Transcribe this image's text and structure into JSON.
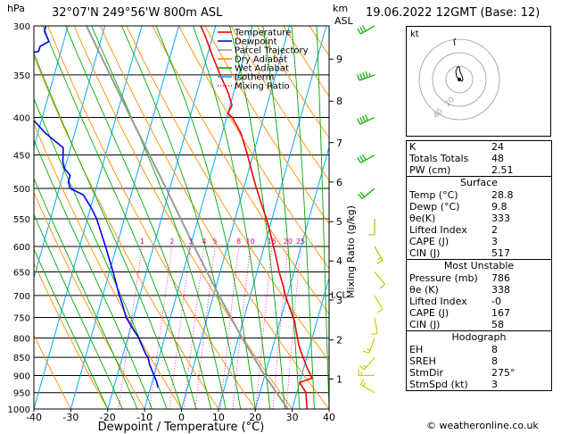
{
  "header": {
    "hpa_unit": "hPa",
    "location": "32°07'N 249°56'W 800m ASL",
    "km_unit": "km",
    "asl_unit": "ASL",
    "date": "19.06.2022 12GMT (Base: 12)"
  },
  "credit": "© weatheronline.co.uk",
  "hodograph": {
    "label": "kt",
    "ring_labels": [
      "20",
      "40"
    ]
  },
  "indices": {
    "rows": [
      {
        "label": "K",
        "value": "24"
      },
      {
        "label": "Totals Totals",
        "value": "48"
      },
      {
        "label": "PW (cm)",
        "value": "2.51"
      }
    ]
  },
  "surface": {
    "title": "Surface",
    "rows": [
      {
        "label": "Temp (°C)",
        "value": "28.8"
      },
      {
        "label": "Dewp (°C)",
        "value": "9.8"
      },
      {
        "label": "θe(K)",
        "value": "333"
      },
      {
        "label": "Lifted Index",
        "value": "2"
      },
      {
        "label": "CAPE (J)",
        "value": "3"
      },
      {
        "label": "CIN (J)",
        "value": "517"
      }
    ]
  },
  "most_unstable": {
    "title": "Most Unstable",
    "rows": [
      {
        "label": "Pressure (mb)",
        "value": "786"
      },
      {
        "label": "θe (K)",
        "value": "338"
      },
      {
        "label": "Lifted Index",
        "value": "-0"
      },
      {
        "label": "CAPE (J)",
        "value": "167"
      },
      {
        "label": "CIN (J)",
        "value": "58"
      }
    ]
  },
  "hodograph_table": {
    "title": "Hodograph",
    "rows": [
      {
        "label": "EH",
        "value": "8"
      },
      {
        "label": "SREH",
        "value": "8"
      },
      {
        "label": "StmDir",
        "value": "275°"
      },
      {
        "label": "StmSpd (kt)",
        "value": "3"
      }
    ]
  },
  "chart_data": {
    "type": "line",
    "xlabel": "Dewpoint / Temperature (°C)",
    "ylabel": "Mixing Ratio (g/kg)",
    "xlim": [
      -40,
      40
    ],
    "ylim": [
      1000,
      300
    ],
    "x_ticks": [
      "-40",
      "-30",
      "-20",
      "-10",
      "0",
      "10",
      "20",
      "30",
      "40"
    ],
    "pressure_levels": [
      300,
      350,
      400,
      450,
      500,
      550,
      600,
      650,
      700,
      750,
      800,
      850,
      900,
      950,
      1000
    ],
    "km_ticks": [
      {
        "label": "1",
        "p": 910
      },
      {
        "label": "2",
        "p": 805
      },
      {
        "label": "3",
        "p": 710
      },
      {
        "label": "4",
        "p": 628
      },
      {
        "label": "5",
        "p": 555
      },
      {
        "label": "6",
        "p": 490
      },
      {
        "label": "7",
        "p": 433
      },
      {
        "label": "8",
        "p": 380
      },
      {
        "label": "9",
        "p": 333
      }
    ],
    "lcl_label": "LCL",
    "lcl_p": 697,
    "mixing_ratio_labels": [
      "1",
      "2",
      "3",
      "4",
      "5",
      "8",
      "10",
      "15",
      "20",
      "25"
    ],
    "legend": {
      "position": "top-left",
      "entries": [
        {
          "name": "Temperature",
          "color": "#ff0000"
        },
        {
          "name": "Dewpoint",
          "color": "#0000ff"
        },
        {
          "name": "Parcel Trajectory",
          "color": "#999999"
        },
        {
          "name": "Dry Adiabat",
          "color": "#ff8c00"
        },
        {
          "name": "Wet Adiabat",
          "color": "#00aa00"
        },
        {
          "name": "Isotherm",
          "color": "#00aaff"
        },
        {
          "name": "Mixing Ratio",
          "color": "#ff00aa"
        }
      ]
    },
    "series": [
      {
        "name": "Temperature",
        "color": "#ff0000",
        "points": [
          [
            1000,
            34
          ],
          [
            950,
            32.5
          ],
          [
            920,
            30
          ],
          [
            908,
            33
          ],
          [
            900,
            32.5
          ],
          [
            880,
            31
          ],
          [
            850,
            29
          ],
          [
            820,
            27
          ],
          [
            800,
            26
          ],
          [
            780,
            25
          ],
          [
            760,
            24
          ],
          [
            740,
            22.5
          ],
          [
            720,
            21
          ],
          [
            700,
            19.5
          ],
          [
            680,
            18.2
          ],
          [
            650,
            16
          ],
          [
            620,
            14
          ],
          [
            600,
            12.5
          ],
          [
            580,
            11
          ],
          [
            550,
            8.5
          ],
          [
            520,
            5.5
          ],
          [
            500,
            3.5
          ],
          [
            480,
            1.5
          ],
          [
            450,
            -1.5
          ],
          [
            420,
            -5
          ],
          [
            400,
            -8.5
          ],
          [
            395,
            -10
          ],
          [
            385,
            -9.5
          ],
          [
            370,
            -11.5
          ],
          [
            350,
            -15
          ],
          [
            330,
            -18.5
          ],
          [
            310,
            -22
          ],
          [
            300,
            -24
          ]
        ]
      },
      {
        "name": "Dewpoint",
        "color": "#0000ff",
        "points": [
          [
            935,
            -8
          ],
          [
            925,
            -8.5
          ],
          [
            915,
            -9
          ],
          [
            900,
            -10
          ],
          [
            885,
            -11
          ],
          [
            870,
            -12
          ],
          [
            850,
            -13
          ],
          [
            840,
            -14
          ],
          [
            820,
            -15.5
          ],
          [
            800,
            -17
          ],
          [
            790,
            -18
          ],
          [
            770,
            -20
          ],
          [
            760,
            -21
          ],
          [
            750,
            -22
          ],
          [
            720,
            -24
          ],
          [
            700,
            -25.5
          ],
          [
            650,
            -29
          ],
          [
            600,
            -33
          ],
          [
            550,
            -37.5
          ],
          [
            530,
            -40
          ],
          [
            510,
            -43
          ],
          [
            500,
            -47
          ],
          [
            490,
            -48
          ],
          [
            480,
            -48
          ],
          [
            470,
            -50
          ],
          [
            460,
            -51
          ],
          [
            450,
            -51.5
          ],
          [
            440,
            -52
          ],
          [
            420,
            -58
          ],
          [
            400,
            -63
          ],
          [
            380,
            -64
          ],
          [
            370,
            -68
          ],
          [
            360,
            -71
          ],
          [
            340,
            -73
          ],
          [
            330,
            -72
          ],
          [
            325,
            -66
          ],
          [
            320,
            -66
          ],
          [
            315,
            -64
          ],
          [
            305,
            -66
          ],
          [
            300,
            -66
          ]
        ]
      },
      {
        "name": "Parcel Trajectory",
        "color": "#999999",
        "points": [
          [
            1000,
            28.8
          ],
          [
            900,
            20
          ],
          [
            800,
            11
          ],
          [
            700,
            1.5
          ],
          [
            600,
            -9
          ],
          [
            500,
            -21
          ],
          [
            400,
            -36
          ],
          [
            300,
            -55
          ]
        ]
      }
    ],
    "wind_barbs": [
      {
        "p": 300,
        "dir": 240,
        "speed_kt": 30
      },
      {
        "p": 350,
        "dir": 250,
        "speed_kt": 35
      },
      {
        "p": 400,
        "dir": 245,
        "speed_kt": 40
      },
      {
        "p": 450,
        "dir": 240,
        "speed_kt": 30
      },
      {
        "p": 500,
        "dir": 230,
        "speed_kt": 20
      },
      {
        "p": 550,
        "dir": 180,
        "speed_kt": 10
      },
      {
        "p": 600,
        "dir": 150,
        "speed_kt": 5
      },
      {
        "p": 650,
        "dir": 140,
        "speed_kt": 10
      },
      {
        "p": 700,
        "dir": 150,
        "speed_kt": 10
      },
      {
        "p": 750,
        "dir": 170,
        "speed_kt": 10
      },
      {
        "p": 800,
        "dir": 200,
        "speed_kt": 5
      },
      {
        "p": 850,
        "dir": 220,
        "speed_kt": 5
      },
      {
        "p": 900,
        "dir": 270,
        "speed_kt": 5
      },
      {
        "p": 950,
        "dir": 300,
        "speed_kt": 5
      }
    ]
  }
}
